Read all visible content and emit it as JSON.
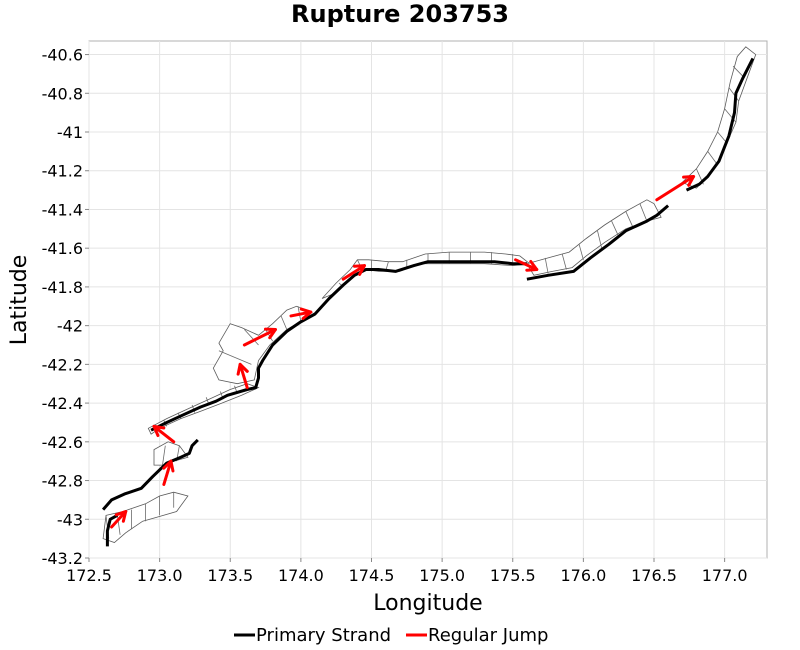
{
  "chart_data": {
    "type": "line",
    "title": "Rupture 203753",
    "xlabel": "Longitude",
    "ylabel": "Latitude",
    "xlim": [
      172.5,
      177.3
    ],
    "ylim": [
      -43.2,
      -40.53
    ],
    "x_ticks": [
      172.5,
      173.0,
      173.5,
      174.0,
      174.5,
      175.0,
      175.5,
      176.0,
      176.5,
      177.0
    ],
    "x_tick_labels": [
      "172.5",
      "173.0",
      "173.5",
      "174.0",
      "174.5",
      "175.0",
      "175.5",
      "176.0",
      "176.5",
      "177.0"
    ],
    "y_ticks": [
      -40.6,
      -40.8,
      -41.0,
      -41.2,
      -41.4,
      -41.6,
      -41.8,
      -42.0,
      -42.2,
      -42.4,
      -42.6,
      -42.8,
      -43.0,
      -43.2
    ],
    "y_tick_labels": [
      "-40.6",
      "-40.8",
      "-41",
      "-41.2",
      "-41.4",
      "-41.6",
      "-41.8",
      "-42",
      "-42.2",
      "-42.4",
      "-42.6",
      "-42.8",
      "-43",
      "-43.2"
    ],
    "grid": true,
    "legend_position": "bottom",
    "series": [
      {
        "name": "Primary Strand",
        "color": "#000000",
        "segments": [
          [
            [
              172.63,
              -43.14
            ],
            [
              172.63,
              -43.06
            ],
            [
              172.65,
              -43.0
            ],
            [
              172.7,
              -42.98
            ]
          ],
          [
            [
              172.6,
              -42.95
            ],
            [
              172.66,
              -42.9
            ],
            [
              172.75,
              -42.87
            ],
            [
              172.87,
              -42.84
            ],
            [
              172.95,
              -42.78
            ],
            [
              173.05,
              -42.71
            ],
            [
              173.15,
              -42.68
            ],
            [
              173.21,
              -42.66
            ],
            [
              173.23,
              -42.62
            ],
            [
              173.27,
              -42.59
            ]
          ],
          [
            [
              172.94,
              -42.54
            ],
            [
              173.05,
              -42.5
            ],
            [
              173.17,
              -42.46
            ],
            [
              173.29,
              -42.42
            ],
            [
              173.4,
              -42.39
            ],
            [
              173.48,
              -42.36
            ],
            [
              173.62,
              -42.33
            ],
            [
              173.68,
              -42.32
            ],
            [
              173.7,
              -42.27
            ],
            [
              173.7,
              -42.22
            ],
            [
              173.73,
              -42.18
            ],
            [
              173.8,
              -42.1
            ],
            [
              173.9,
              -42.03
            ],
            [
              174.0,
              -41.98
            ],
            [
              174.1,
              -41.94
            ],
            [
              174.2,
              -41.86
            ],
            [
              174.3,
              -41.79
            ],
            [
              174.38,
              -41.74
            ],
            [
              174.46,
              -41.71
            ],
            [
              174.55,
              -41.71
            ],
            [
              174.67,
              -41.72
            ],
            [
              174.8,
              -41.69
            ],
            [
              174.9,
              -41.67
            ],
            [
              175.05,
              -41.67
            ],
            [
              175.2,
              -41.67
            ],
            [
              175.37,
              -41.67
            ],
            [
              175.5,
              -41.68
            ],
            [
              175.6,
              -41.68
            ]
          ],
          [
            [
              175.6,
              -41.76
            ],
            [
              175.75,
              -41.74
            ],
            [
              175.93,
              -41.72
            ],
            [
              176.05,
              -41.65
            ],
            [
              176.18,
              -41.58
            ],
            [
              176.3,
              -41.51
            ],
            [
              176.45,
              -41.46
            ],
            [
              176.52,
              -41.43
            ],
            [
              176.6,
              -41.38
            ]
          ],
          [
            [
              176.73,
              -41.3
            ],
            [
              176.82,
              -41.27
            ],
            [
              176.88,
              -41.23
            ],
            [
              176.96,
              -41.15
            ],
            [
              177.03,
              -41.02
            ],
            [
              177.07,
              -40.9
            ],
            [
              177.08,
              -40.8
            ],
            [
              177.13,
              -40.72
            ],
            [
              177.2,
              -40.62
            ]
          ]
        ]
      },
      {
        "name": "Regular Jump",
        "color": "#ff0000",
        "segments": [
          [
            [
              172.66,
              -43.04
            ],
            [
              172.76,
              -42.96
            ]
          ],
          [
            [
              173.03,
              -42.82
            ],
            [
              173.08,
              -42.7
            ]
          ],
          [
            [
              173.1,
              -42.6
            ],
            [
              172.96,
              -42.52
            ]
          ],
          [
            [
              173.62,
              -42.32
            ],
            [
              173.57,
              -42.2
            ]
          ],
          [
            [
              173.6,
              -42.1
            ],
            [
              173.82,
              -42.02
            ]
          ],
          [
            [
              173.93,
              -41.95
            ],
            [
              174.07,
              -41.93
            ]
          ],
          [
            [
              174.3,
              -41.76
            ],
            [
              174.45,
              -41.69
            ]
          ],
          [
            [
              175.52,
              -41.66
            ],
            [
              175.67,
              -41.71
            ]
          ],
          [
            [
              176.52,
              -41.35
            ],
            [
              176.78,
              -41.23
            ]
          ]
        ]
      }
    ],
    "fault_patches": [
      [
        [
          172.62,
          -42.98
        ],
        [
          172.74,
          -42.96
        ],
        [
          172.9,
          -42.92
        ],
        [
          173.0,
          -42.88
        ],
        [
          173.1,
          -42.86
        ],
        [
          173.2,
          -42.88
        ],
        [
          173.12,
          -42.96
        ],
        [
          172.98,
          -42.99
        ],
        [
          172.88,
          -43.01
        ],
        [
          172.76,
          -43.07
        ],
        [
          172.68,
          -43.12
        ],
        [
          172.6,
          -43.1
        ]
      ],
      [
        [
          172.96,
          -42.64
        ],
        [
          173.06,
          -42.6
        ],
        [
          173.14,
          -42.62
        ],
        [
          173.2,
          -42.68
        ],
        [
          173.1,
          -42.7
        ],
        [
          173.04,
          -42.72
        ],
        [
          172.96,
          -42.72
        ]
      ],
      [
        [
          172.92,
          -42.53
        ],
        [
          173.05,
          -42.48
        ],
        [
          173.2,
          -42.43
        ],
        [
          173.35,
          -42.38
        ],
        [
          173.5,
          -42.33
        ],
        [
          173.62,
          -42.3
        ],
        [
          173.7,
          -42.32
        ],
        [
          173.58,
          -42.36
        ],
        [
          173.44,
          -42.4
        ],
        [
          173.3,
          -42.44
        ],
        [
          173.15,
          -42.48
        ],
        [
          173.0,
          -42.53
        ],
        [
          172.94,
          -42.56
        ]
      ],
      [
        [
          173.38,
          -42.22
        ],
        [
          173.45,
          -42.13
        ],
        [
          173.42,
          -42.09
        ],
        [
          173.5,
          -41.99
        ],
        [
          173.58,
          -42.01
        ],
        [
          173.7,
          -42.05
        ],
        [
          173.8,
          -41.99
        ],
        [
          173.9,
          -41.92
        ],
        [
          173.97,
          -41.9
        ],
        [
          174.08,
          -41.93
        ],
        [
          174.02,
          -41.97
        ],
        [
          173.9,
          -42.02
        ],
        [
          173.78,
          -42.1
        ],
        [
          173.7,
          -42.18
        ],
        [
          173.67,
          -42.28
        ],
        [
          173.55,
          -42.3
        ],
        [
          173.42,
          -42.28
        ]
      ],
      [
        [
          174.15,
          -41.86
        ],
        [
          174.25,
          -41.78
        ],
        [
          174.35,
          -41.71
        ],
        [
          174.4,
          -41.66
        ],
        [
          174.48,
          -41.66
        ],
        [
          174.62,
          -41.67
        ],
        [
          174.72,
          -41.67
        ],
        [
          174.88,
          -41.63
        ],
        [
          175.05,
          -41.62
        ],
        [
          175.3,
          -41.62
        ],
        [
          175.45,
          -41.63
        ],
        [
          175.55,
          -41.64
        ],
        [
          175.62,
          -41.68
        ],
        [
          175.5,
          -41.69
        ],
        [
          175.3,
          -41.68
        ],
        [
          175.0,
          -41.68
        ],
        [
          174.85,
          -41.68
        ],
        [
          174.7,
          -41.72
        ],
        [
          174.55,
          -41.72
        ],
        [
          174.45,
          -41.71
        ],
        [
          174.35,
          -41.76
        ],
        [
          174.25,
          -41.83
        ]
      ],
      [
        [
          175.6,
          -41.68
        ],
        [
          175.75,
          -41.65
        ],
        [
          175.9,
          -41.62
        ],
        [
          176.02,
          -41.55
        ],
        [
          176.15,
          -41.48
        ],
        [
          176.3,
          -41.41
        ],
        [
          176.45,
          -41.35
        ],
        [
          176.5,
          -41.37
        ],
        [
          176.55,
          -41.44
        ],
        [
          176.45,
          -41.46
        ],
        [
          176.3,
          -41.5
        ],
        [
          176.15,
          -41.57
        ],
        [
          176.02,
          -41.64
        ],
        [
          175.92,
          -41.7
        ],
        [
          175.78,
          -41.72
        ],
        [
          175.65,
          -41.74
        ]
      ],
      [
        [
          176.7,
          -41.26
        ],
        [
          176.8,
          -41.19
        ],
        [
          176.88,
          -41.1
        ],
        [
          176.95,
          -41.0
        ],
        [
          177.0,
          -40.88
        ],
        [
          177.04,
          -40.74
        ],
        [
          177.09,
          -40.61
        ],
        [
          177.15,
          -40.56
        ],
        [
          177.22,
          -40.6
        ],
        [
          177.16,
          -40.72
        ],
        [
          177.1,
          -40.84
        ],
        [
          177.08,
          -40.95
        ],
        [
          177.02,
          -41.05
        ],
        [
          176.96,
          -41.15
        ],
        [
          176.88,
          -41.23
        ],
        [
          176.8,
          -41.29
        ]
      ]
    ],
    "patch_dividers": [
      [
        [
          172.64,
          -43.1
        ],
        [
          172.62,
          -42.98
        ]
      ],
      [
        [
          172.72,
          -43.08
        ],
        [
          172.7,
          -42.97
        ]
      ],
      [
        [
          172.8,
          -43.05
        ],
        [
          172.8,
          -42.95
        ]
      ],
      [
        [
          172.9,
          -43.01
        ],
        [
          172.9,
          -42.92
        ]
      ],
      [
        [
          173.0,
          -42.98
        ],
        [
          173.0,
          -42.88
        ]
      ],
      [
        [
          173.1,
          -42.94
        ],
        [
          173.1,
          -42.86
        ]
      ],
      [
        [
          173.02,
          -42.72
        ],
        [
          173.04,
          -42.62
        ]
      ],
      [
        [
          173.12,
          -42.7
        ],
        [
          173.14,
          -42.62
        ]
      ],
      [
        [
          173.05,
          -42.52
        ],
        [
          173.03,
          -42.49
        ]
      ],
      [
        [
          173.15,
          -42.48
        ],
        [
          173.13,
          -42.45
        ]
      ],
      [
        [
          173.25,
          -42.45
        ],
        [
          173.23,
          -42.41
        ]
      ],
      [
        [
          173.35,
          -42.41
        ],
        [
          173.33,
          -42.37
        ]
      ],
      [
        [
          173.45,
          -42.38
        ],
        [
          173.43,
          -42.34
        ]
      ],
      [
        [
          173.55,
          -42.35
        ],
        [
          173.53,
          -42.31
        ]
      ],
      [
        [
          173.42,
          -42.13
        ],
        [
          173.65,
          -42.2
        ]
      ],
      [
        [
          173.6,
          -42.02
        ],
        [
          173.7,
          -42.1
        ]
      ],
      [
        [
          173.75,
          -42.02
        ],
        [
          173.8,
          -42.08
        ]
      ],
      [
        [
          173.86,
          -41.95
        ],
        [
          173.9,
          -42.02
        ]
      ],
      [
        [
          173.98,
          -41.9
        ],
        [
          174.0,
          -41.98
        ]
      ],
      [
        [
          174.27,
          -41.78
        ],
        [
          174.3,
          -41.8
        ]
      ],
      [
        [
          174.4,
          -41.66
        ],
        [
          174.44,
          -41.72
        ]
      ],
      [
        [
          174.5,
          -41.66
        ],
        [
          174.5,
          -41.72
        ]
      ],
      [
        [
          174.62,
          -41.67
        ],
        [
          174.6,
          -41.72
        ]
      ],
      [
        [
          174.75,
          -41.66
        ],
        [
          174.75,
          -41.7
        ]
      ],
      [
        [
          174.9,
          -41.63
        ],
        [
          174.9,
          -41.68
        ]
      ],
      [
        [
          175.05,
          -41.62
        ],
        [
          175.05,
          -41.68
        ]
      ],
      [
        [
          175.2,
          -41.62
        ],
        [
          175.2,
          -41.68
        ]
      ],
      [
        [
          175.35,
          -41.62
        ],
        [
          175.35,
          -41.68
        ]
      ],
      [
        [
          175.5,
          -41.63
        ],
        [
          175.5,
          -41.69
        ]
      ],
      [
        [
          175.73,
          -41.65
        ],
        [
          175.75,
          -41.73
        ]
      ],
      [
        [
          175.85,
          -41.63
        ],
        [
          175.88,
          -41.71
        ]
      ],
      [
        [
          175.97,
          -41.58
        ],
        [
          176.0,
          -41.66
        ]
      ],
      [
        [
          176.1,
          -41.51
        ],
        [
          176.13,
          -41.6
        ]
      ],
      [
        [
          176.2,
          -41.46
        ],
        [
          176.25,
          -41.54
        ]
      ],
      [
        [
          176.3,
          -41.41
        ],
        [
          176.35,
          -41.49
        ]
      ],
      [
        [
          176.4,
          -41.37
        ],
        [
          176.45,
          -41.46
        ]
      ],
      [
        [
          176.8,
          -41.19
        ],
        [
          176.85,
          -41.27
        ]
      ],
      [
        [
          176.88,
          -41.1
        ],
        [
          176.95,
          -41.17
        ]
      ],
      [
        [
          176.95,
          -41.0
        ],
        [
          177.02,
          -41.06
        ]
      ],
      [
        [
          177.0,
          -40.88
        ],
        [
          177.08,
          -40.95
        ]
      ],
      [
        [
          177.03,
          -40.77
        ],
        [
          177.1,
          -40.84
        ]
      ],
      [
        [
          177.06,
          -40.66
        ],
        [
          177.14,
          -40.72
        ]
      ]
    ],
    "legend": [
      {
        "label": "Primary Strand",
        "color": "#000000"
      },
      {
        "label": "Regular Jump",
        "color": "#ff0000"
      }
    ]
  }
}
